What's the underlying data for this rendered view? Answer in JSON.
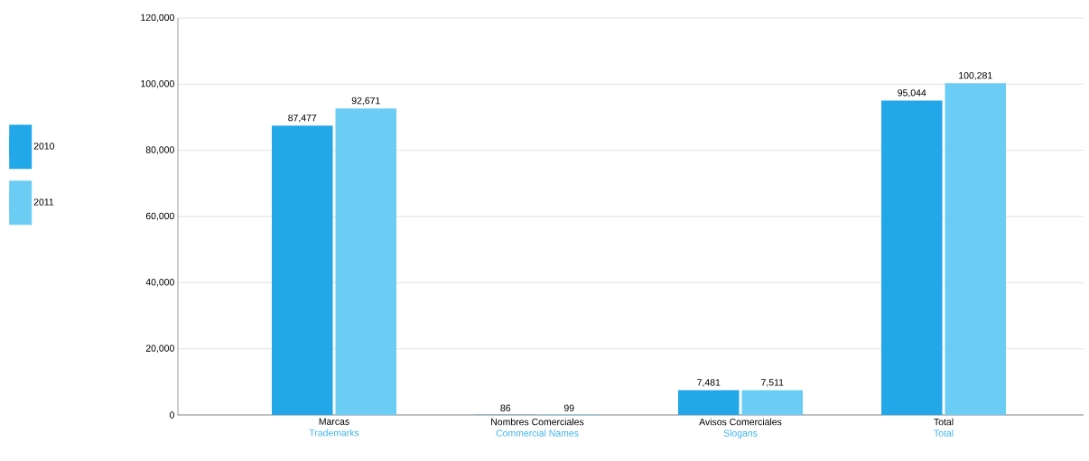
{
  "chart_data": {
    "type": "bar",
    "categories": [
      "Marcas",
      "Nombres Comerciales",
      "Avisos Comerciales",
      "Total"
    ],
    "annotations": [
      "Trademarks",
      "Commercial Names",
      "Slogans",
      "Total"
    ],
    "series": [
      {
        "name": "2010",
        "color": "#22a7e8",
        "values": [
          87477,
          86,
          7481,
          95044
        ],
        "value_labels": [
          "87,477",
          "86",
          "7,481",
          "95,044"
        ]
      },
      {
        "name": "2011",
        "color": "#6bcdf4",
        "values": [
          92671,
          99,
          7511,
          100281
        ],
        "value_labels": [
          "92,671",
          "99",
          "7,511",
          "100,281"
        ]
      }
    ],
    "ylim": [
      0,
      120000
    ],
    "yticks": [
      0,
      {
        "value": 20000,
        "label": "20,000"
      },
      {
        "value": 40000,
        "label": "40,000"
      },
      {
        "value": 60000,
        "label": "60,000"
      },
      {
        "value": 80000,
        "label": "80,000"
      },
      {
        "value": 100000,
        "label": "100,000"
      },
      {
        "value": 120000,
        "label": "120,000"
      }
    ],
    "grid": "y",
    "legend": "left"
  }
}
